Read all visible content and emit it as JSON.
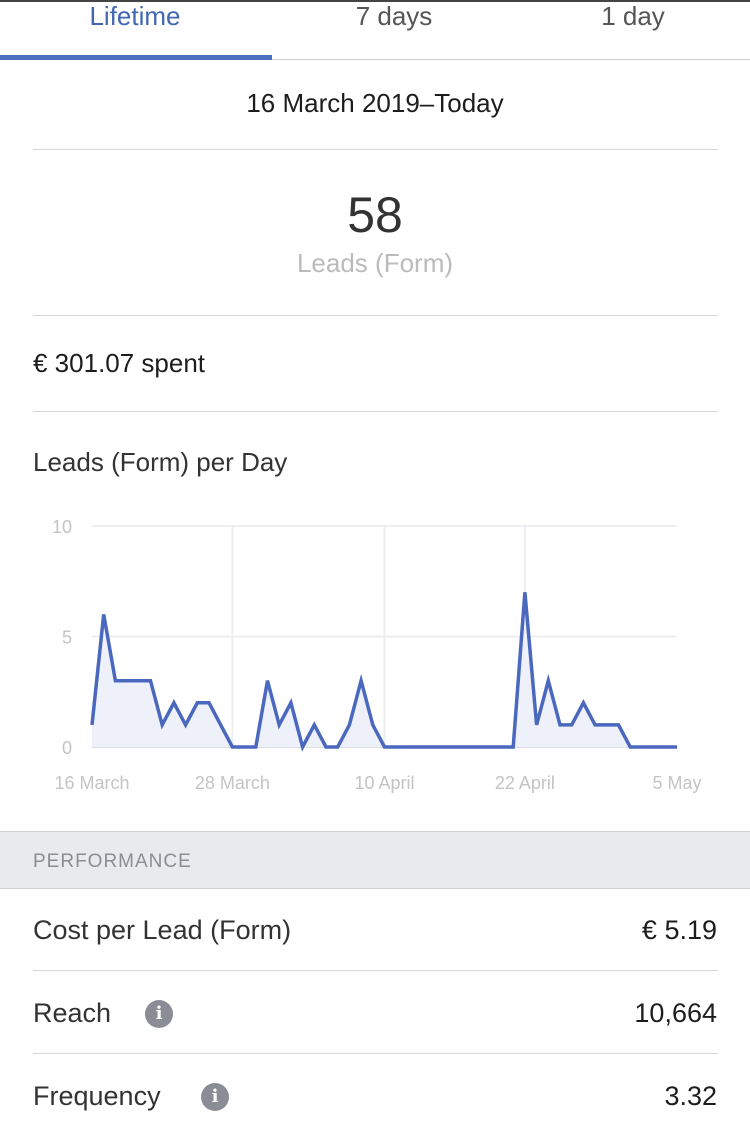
{
  "tabs": [
    {
      "label": "Lifetime",
      "active": true
    },
    {
      "label": "7 days",
      "active": false
    },
    {
      "label": "1 day",
      "active": false
    }
  ],
  "date_range": "16 March 2019–Today",
  "summary": {
    "value": "58",
    "label": "Leads (Form)"
  },
  "spent": "€ 301.07 spent",
  "chart_title": "Leads (Form) per Day",
  "chart_data": {
    "type": "area",
    "title": "Leads (Form) per Day",
    "x_ticks": [
      "16 March",
      "28 March",
      "10 April",
      "22 April",
      "5 May"
    ],
    "y_ticks": [
      "0",
      "5",
      "10"
    ],
    "ylim": [
      0,
      10
    ],
    "grid": true,
    "color": "#4a68bd",
    "fill": "#eef0fa",
    "x": [
      "16 Mar",
      "17 Mar",
      "18 Mar",
      "19 Mar",
      "20 Mar",
      "21 Mar",
      "22 Mar",
      "23 Mar",
      "24 Mar",
      "25 Mar",
      "26 Mar",
      "27 Mar",
      "28 Mar",
      "29 Mar",
      "30 Mar",
      "31 Mar",
      "1 Apr",
      "2 Apr",
      "3 Apr",
      "4 Apr",
      "5 Apr",
      "6 Apr",
      "7 Apr",
      "8 Apr",
      "9 Apr",
      "10 Apr",
      "11 Apr",
      "12 Apr",
      "13 Apr",
      "14 Apr",
      "15 Apr",
      "16 Apr",
      "17 Apr",
      "18 Apr",
      "19 Apr",
      "20 Apr",
      "21 Apr",
      "22 Apr",
      "23 Apr",
      "24 Apr",
      "25 Apr",
      "26 Apr",
      "27 Apr",
      "28 Apr",
      "29 Apr",
      "30 Apr",
      "1 May",
      "2 May",
      "3 May",
      "4 May",
      "5 May"
    ],
    "values": [
      1,
      6,
      3,
      3,
      3,
      3,
      1,
      2,
      1,
      2,
      2,
      1,
      0,
      0,
      0,
      3,
      1,
      2,
      0,
      1,
      0,
      0,
      1,
      3,
      1,
      0,
      0,
      0,
      0,
      0,
      0,
      0,
      0,
      0,
      0,
      0,
      0,
      7,
      1,
      3,
      1,
      1,
      2,
      1,
      1,
      1,
      0,
      0,
      0,
      0,
      0
    ]
  },
  "section_header": "PERFORMANCE",
  "metrics": [
    {
      "label": "Cost per Lead (Form)",
      "value": "€ 5.19",
      "info": false
    },
    {
      "label": "Reach",
      "value": "10,664",
      "info": true
    },
    {
      "label": "Frequency",
      "value": "3.32",
      "info": true
    }
  ],
  "icons": {
    "info": "info-icon"
  },
  "colors": {
    "accent": "#4267b2"
  }
}
